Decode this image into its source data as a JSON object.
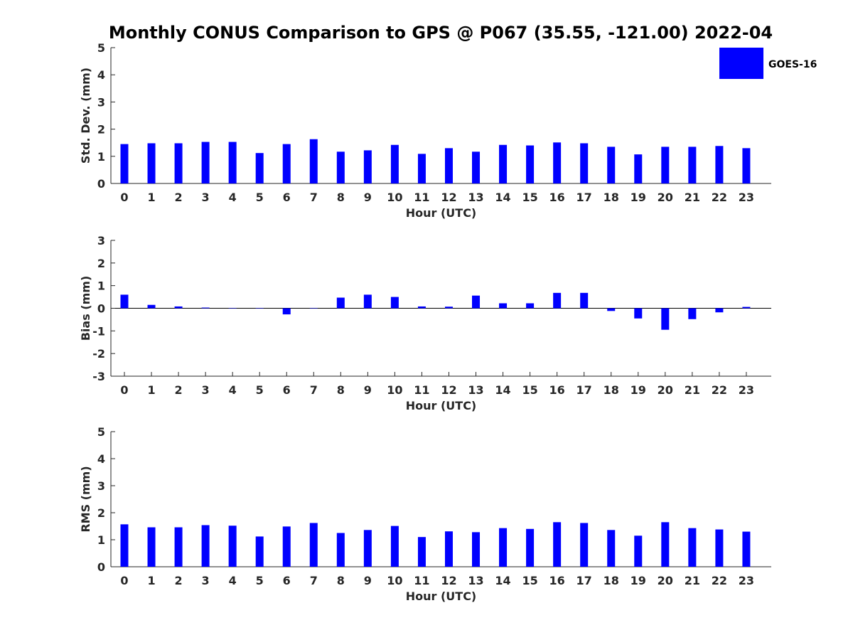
{
  "title": "Monthly CONUS Comparison to GPS @ P067 (35.55, -121.00) 2022-04",
  "legend": {
    "label": "GOES-16",
    "color": "#0000ff",
    "position": "top-right"
  },
  "chart_data": [
    {
      "type": "bar",
      "xlabel": "Hour (UTC)",
      "ylabel": "Std. Dev. (mm)",
      "ylim": [
        0,
        5
      ],
      "yticks": [
        0,
        1,
        2,
        3,
        4,
        5
      ],
      "categories": [
        "0",
        "1",
        "2",
        "3",
        "4",
        "5",
        "6",
        "7",
        "8",
        "9",
        "10",
        "11",
        "12",
        "13",
        "14",
        "15",
        "16",
        "17",
        "18",
        "19",
        "20",
        "21",
        "22",
        "23"
      ],
      "series": [
        {
          "name": "GOES-16",
          "color": "#0000ff",
          "values": [
            1.45,
            1.48,
            1.48,
            1.53,
            1.53,
            1.12,
            1.45,
            1.63,
            1.17,
            1.22,
            1.42,
            1.09,
            1.3,
            1.17,
            1.42,
            1.4,
            1.51,
            1.48,
            1.35,
            1.07,
            1.35,
            1.35,
            1.38,
            1.3
          ]
        }
      ],
      "grid": false
    },
    {
      "type": "bar",
      "xlabel": "Hour (UTC)",
      "ylabel": "Bias (mm)",
      "ylim": [
        -3,
        3
      ],
      "yticks": [
        -3,
        -2,
        -1,
        0,
        1,
        2,
        3
      ],
      "categories": [
        "0",
        "1",
        "2",
        "3",
        "4",
        "5",
        "6",
        "7",
        "8",
        "9",
        "10",
        "11",
        "12",
        "13",
        "14",
        "15",
        "16",
        "17",
        "18",
        "19",
        "20",
        "21",
        "22",
        "23"
      ],
      "series": [
        {
          "name": "GOES-16",
          "color": "#0000ff",
          "values": [
            0.6,
            0.15,
            0.08,
            0.03,
            0.0,
            0.0,
            -0.27,
            0.0,
            0.47,
            0.6,
            0.5,
            0.08,
            0.07,
            0.56,
            0.22,
            0.22,
            0.68,
            0.68,
            -0.12,
            -0.45,
            -0.95,
            -0.48,
            -0.18,
            0.06
          ]
        }
      ],
      "grid": false
    },
    {
      "type": "bar",
      "xlabel": "Hour (UTC)",
      "ylabel": "RMS (mm)",
      "ylim": [
        0,
        5
      ],
      "yticks": [
        0,
        1,
        2,
        3,
        4,
        5
      ],
      "categories": [
        "0",
        "1",
        "2",
        "3",
        "4",
        "5",
        "6",
        "7",
        "8",
        "9",
        "10",
        "11",
        "12",
        "13",
        "14",
        "15",
        "16",
        "17",
        "18",
        "19",
        "20",
        "21",
        "22",
        "23"
      ],
      "series": [
        {
          "name": "GOES-16",
          "color": "#0000ff",
          "values": [
            1.57,
            1.46,
            1.46,
            1.54,
            1.52,
            1.12,
            1.49,
            1.62,
            1.25,
            1.36,
            1.51,
            1.1,
            1.31,
            1.28,
            1.43,
            1.4,
            1.65,
            1.62,
            1.36,
            1.15,
            1.65,
            1.43,
            1.38,
            1.3
          ]
        }
      ],
      "grid": false
    }
  ]
}
